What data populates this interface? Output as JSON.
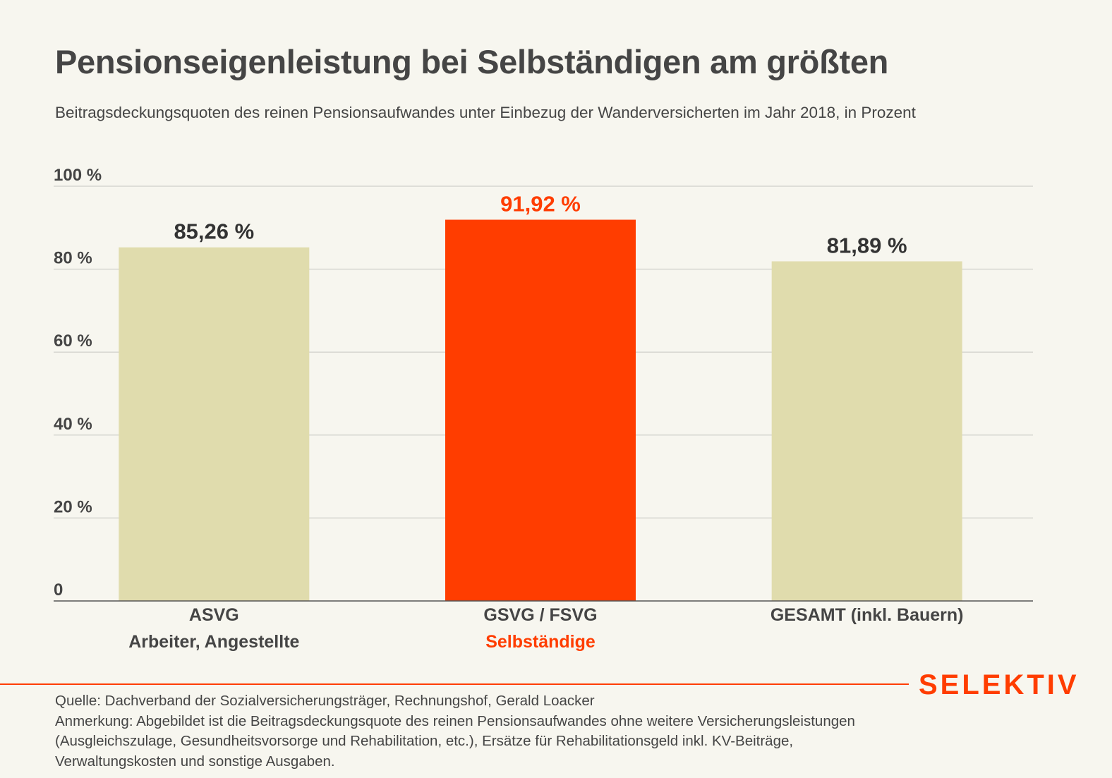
{
  "title": "Pensionseigenleistung bei Selbständigen am größten",
  "subtitle": "Beitragsdeckungsquoten des reinen Pensionsaufwandes unter Einbezug der Wanderversicherten im Jahr 2018, in Prozent",
  "brand": "SELEKTIV",
  "footer": {
    "source": "Quelle: Dachverband der Sozialversicherungsträger, Rechnungshof, Gerald Loacker",
    "note_lines": [
      "Anmerkung: Abgebildet ist die Beitragsdeckungsquote des reinen Pensionsaufwandes ohne weitere Versicherungsleistungen",
      "(Ausgleichszulage, Gesundheitsvorsorge und Rehabilitation, etc.), Ersätze für Rehabilitationsgeld inkl. KV-Beiträge,",
      "Verwaltungskosten und sonstige Ausgaben."
    ]
  },
  "colors": {
    "highlight": "#ff3d00",
    "default_bar": "#e0dcad",
    "text": "#454545",
    "value_text": "#333333",
    "grid": "#d6d6d0",
    "baseline": "#555555",
    "background": "#f7f6ef"
  },
  "chart_data": {
    "type": "bar",
    "title": "Pensionseigenleistung bei Selbständigen am größten",
    "subtitle": "Beitragsdeckungsquoten des reinen Pensionsaufwandes unter Einbezug der Wanderversicherten im Jahr 2018, in Prozent",
    "categories": [
      "ASVG",
      "GSVG / FSVG",
      "GESAMT (inkl. Bauern)"
    ],
    "category_sublabels": [
      "Arbeiter, Angestellte",
      "Selbständige",
      ""
    ],
    "values": [
      85.26,
      91.92,
      81.89
    ],
    "value_labels": [
      "85,26 %",
      "91,92 %",
      "81,89 %"
    ],
    "highlighted": [
      false,
      true,
      false
    ],
    "ylim": [
      0,
      100
    ],
    "yticks": [
      0,
      20,
      40,
      60,
      80,
      100
    ],
    "ytick_labels": [
      "0",
      "20 %",
      "40 %",
      "60 %",
      "80 %",
      "100 %"
    ],
    "xlabel": "",
    "ylabel": "",
    "grid": true,
    "legend": "none"
  }
}
